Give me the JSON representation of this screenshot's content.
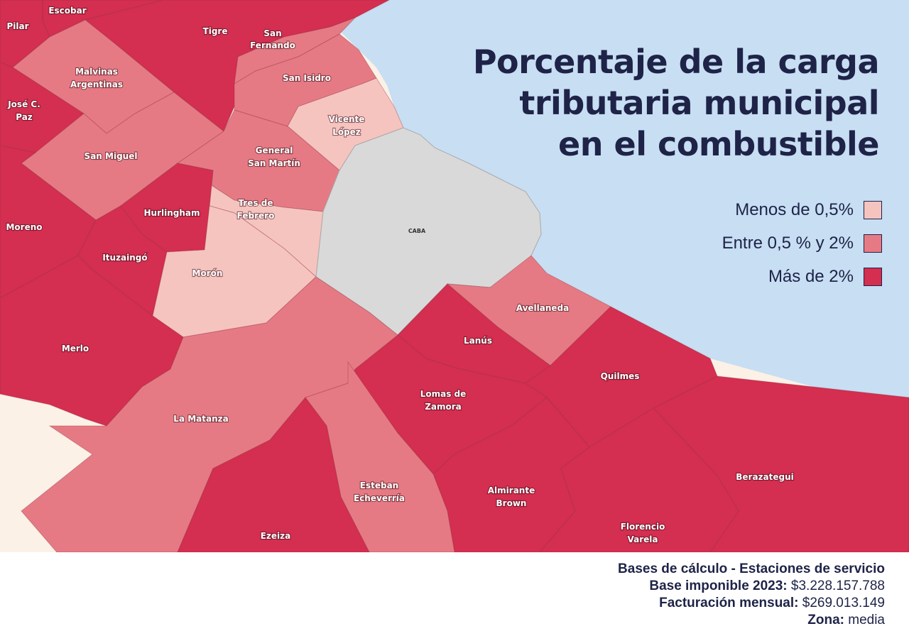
{
  "title": {
    "line1": "Porcentaje de la carga",
    "line2": "tributaria municipal",
    "line3": "en el combustible"
  },
  "legend": [
    {
      "label": "Menos de 0,5%",
      "color": "#f6c4bf"
    },
    {
      "label": "Entre 0,5 % y 2%",
      "color": "#e67a84"
    },
    {
      "label": "Más de 2%",
      "color": "#d42e50"
    }
  ],
  "colors": {
    "low": "#f6c4bf",
    "mid": "#e67a84",
    "high": "#d42e50",
    "caba": "#d9d9d9",
    "water": "#c7def3",
    "land_outside": "#fcf1e6"
  },
  "districts": [
    {
      "id": "escobar",
      "name": "Escobar",
      "category": "high"
    },
    {
      "id": "pilar",
      "name": "Pilar",
      "category": "high"
    },
    {
      "id": "tigre",
      "name": "Tigre",
      "category": "high"
    },
    {
      "id": "san-fernando",
      "name": "San Fernando",
      "category": "mid"
    },
    {
      "id": "san-isidro",
      "name": "San Isidro",
      "category": "mid"
    },
    {
      "id": "malvinas-argentinas",
      "name": "Malvinas Argentinas",
      "category": "mid"
    },
    {
      "id": "jose-c-paz",
      "name": "José C. Paz",
      "category": "high"
    },
    {
      "id": "vicente-lopez",
      "name": "Vicente López",
      "category": "low"
    },
    {
      "id": "san-miguel",
      "name": "San Miguel",
      "category": "mid"
    },
    {
      "id": "general-san-martin",
      "name": "General San Martín",
      "category": "mid"
    },
    {
      "id": "tres-de-febrero",
      "name": "Tres de Febrero",
      "category": "low"
    },
    {
      "id": "hurlingham",
      "name": "Hurlingham",
      "category": "high"
    },
    {
      "id": "moreno",
      "name": "Moreno",
      "category": "high"
    },
    {
      "id": "ituzaingo",
      "name": "Ituzaingó",
      "category": "high"
    },
    {
      "id": "moron",
      "name": "Morón",
      "category": "low"
    },
    {
      "id": "caba",
      "name": "CABA",
      "category": "none"
    },
    {
      "id": "avellaneda",
      "name": "Avellaneda",
      "category": "mid"
    },
    {
      "id": "lanus",
      "name": "Lanús",
      "category": "high"
    },
    {
      "id": "merlo",
      "name": "Merlo",
      "category": "high"
    },
    {
      "id": "quilmes",
      "name": "Quilmes",
      "category": "high"
    },
    {
      "id": "lomas-de-zamora",
      "name": "Lomas de Zamora",
      "category": "high"
    },
    {
      "id": "la-matanza",
      "name": "La Matanza",
      "category": "mid"
    },
    {
      "id": "berazategui",
      "name": "Berazategui",
      "category": "high"
    },
    {
      "id": "almirante-brown",
      "name": "Almirante Brown",
      "category": "high"
    },
    {
      "id": "esteban-echeverria",
      "name": "Esteban Echeverría",
      "category": "mid"
    },
    {
      "id": "florencio-varela",
      "name": "Florencio Varela",
      "category": "high"
    },
    {
      "id": "ezeiza",
      "name": "Ezeiza",
      "category": "high"
    }
  ],
  "footer": {
    "heading": "Bases de cálculo - Estaciones de servicio",
    "base_label": "Base imponible 2023:",
    "base_value": "$3.228.157.788",
    "fact_label": "Facturación mensual:",
    "fact_value": "$269.013.149",
    "zona_label": "Zona:",
    "zona_value": "media"
  }
}
